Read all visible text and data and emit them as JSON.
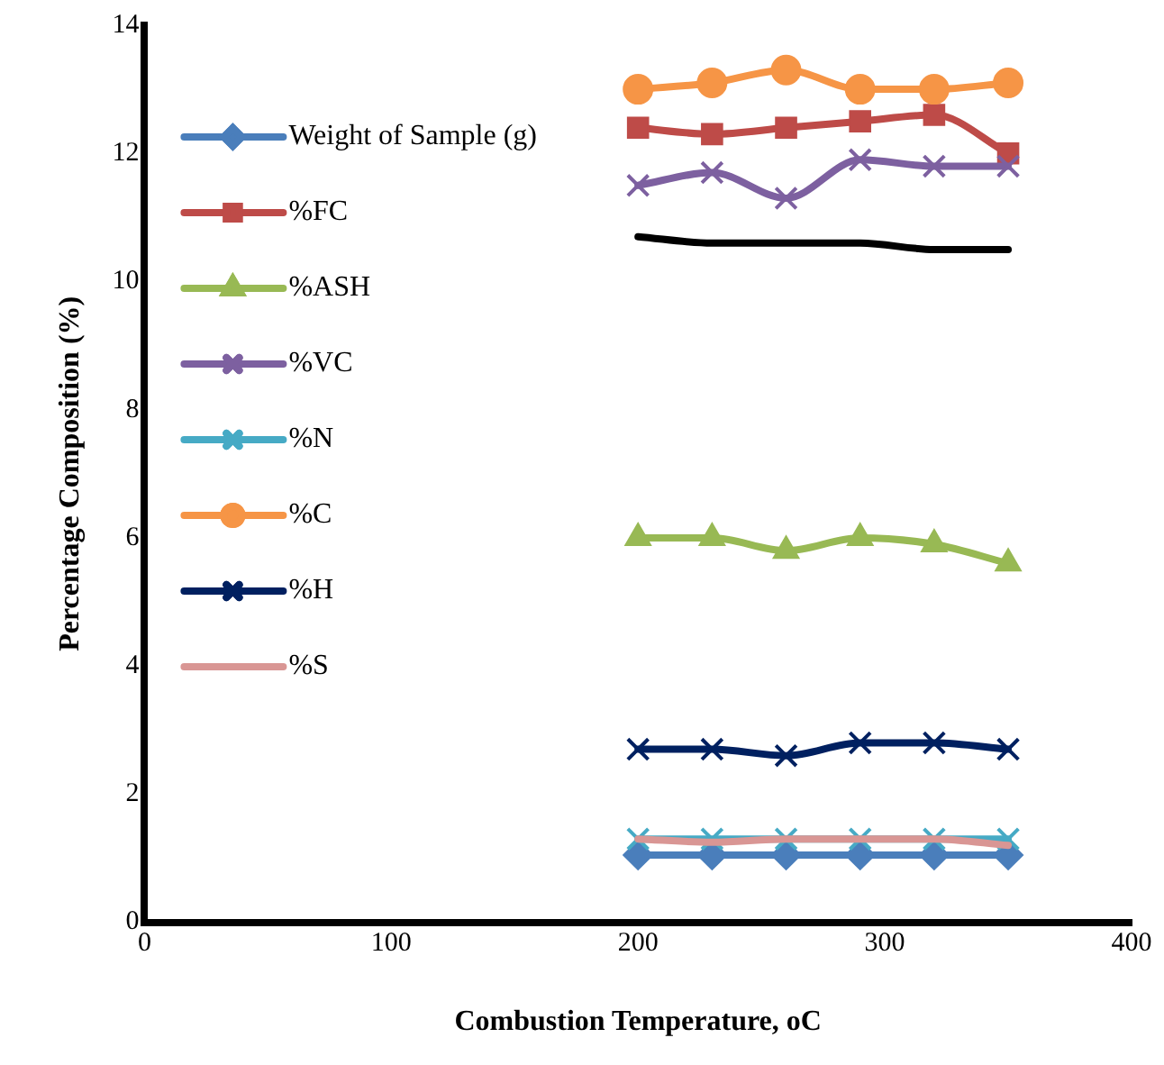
{
  "chart_data": {
    "type": "line",
    "xlabel": "Combustion Temperature, oC",
    "ylabel": "Percentage Composition (%)",
    "x": [
      200,
      230,
      260,
      290,
      320,
      350
    ],
    "xlim": [
      0,
      400
    ],
    "xticks": [
      0,
      100,
      200,
      300,
      400
    ],
    "ylim": [
      0,
      14
    ],
    "yticks": [
      0,
      2,
      4,
      6,
      8,
      10,
      12,
      14
    ],
    "grid": false,
    "legend": "top left",
    "series": [
      {
        "name": "Weight of Sample (g)",
        "color": "#4a7ebb",
        "marker": "diamond",
        "values": [
          1.05,
          1.05,
          1.05,
          1.05,
          1.05,
          1.05
        ]
      },
      {
        "name": "%FC",
        "color": "#be4b48",
        "marker": "square",
        "values": [
          12.4,
          12.3,
          12.4,
          12.5,
          12.6,
          12.0
        ]
      },
      {
        "name": "%ASH",
        "color": "#98b954",
        "marker": "triangle",
        "values": [
          6.0,
          6.0,
          5.8,
          6.0,
          5.9,
          5.6
        ]
      },
      {
        "name": "%VC",
        "color": "#7d60a0",
        "marker": "cross",
        "values": [
          11.5,
          11.7,
          11.3,
          11.9,
          11.8,
          11.8
        ]
      },
      {
        "name": "%N",
        "color": "#46aac5",
        "marker": "cross",
        "values": [
          1.3,
          1.3,
          1.3,
          1.3,
          1.3,
          1.3
        ]
      },
      {
        "name": "%C",
        "color": "#f69546",
        "marker": "circle",
        "values": [
          13.0,
          13.1,
          13.3,
          13.0,
          13.0,
          13.1
        ]
      },
      {
        "name": "%H",
        "color": "#002060",
        "marker": "cross",
        "values": [
          2.7,
          2.7,
          2.6,
          2.8,
          2.8,
          2.7
        ]
      },
      {
        "name": "%S",
        "color": "#d99694",
        "marker": "none",
        "values": [
          1.3,
          1.25,
          1.3,
          1.3,
          1.3,
          1.2
        ]
      },
      {
        "color": "#000000",
        "marker": "none",
        "values": [
          10.7,
          10.6,
          10.6,
          10.6,
          10.5,
          10.5
        ]
      }
    ]
  }
}
